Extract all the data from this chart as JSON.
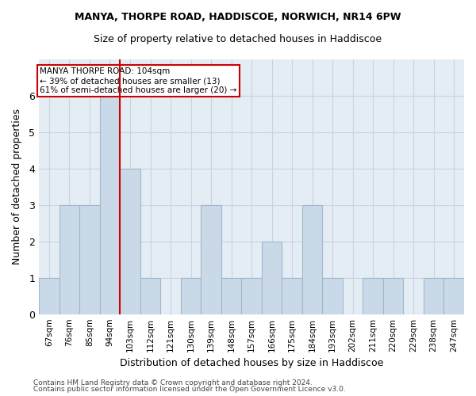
{
  "title": "MANYA, THORPE ROAD, HADDISCOE, NORWICH, NR14 6PW",
  "subtitle": "Size of property relative to detached houses in Haddiscoe",
  "xlabel": "Distribution of detached houses by size in Haddiscoe",
  "ylabel": "Number of detached properties",
  "categories": [
    "67sqm",
    "76sqm",
    "85sqm",
    "94sqm",
    "103sqm",
    "112sqm",
    "121sqm",
    "130sqm",
    "139sqm",
    "148sqm",
    "157sqm",
    "166sqm",
    "175sqm",
    "184sqm",
    "193sqm",
    "202sqm",
    "211sqm",
    "220sqm",
    "229sqm",
    "238sqm",
    "247sqm"
  ],
  "values": [
    1,
    3,
    3,
    6,
    4,
    1,
    0,
    1,
    3,
    1,
    1,
    2,
    1,
    3,
    1,
    0,
    1,
    1,
    0,
    1,
    1
  ],
  "bar_color": "#c9d9e8",
  "bar_edgecolor": "#a0b8cc",
  "red_line_index": 4,
  "red_line_color": "#cc0000",
  "annotation_text": "MANYA THORPE ROAD: 104sqm\n← 39% of detached houses are smaller (13)\n61% of semi-detached houses are larger (20) →",
  "annotation_box_edgecolor": "#cc0000",
  "annotation_box_facecolor": "#ffffff",
  "ylim": [
    0,
    7
  ],
  "yticks": [
    0,
    1,
    2,
    3,
    4,
    5,
    6
  ],
  "footer1": "Contains HM Land Registry data © Crown copyright and database right 2024.",
  "footer2": "Contains public sector information licensed under the Open Government Licence v3.0.",
  "grid_color": "#c8d4e4",
  "bg_color": "#e4ecf4"
}
